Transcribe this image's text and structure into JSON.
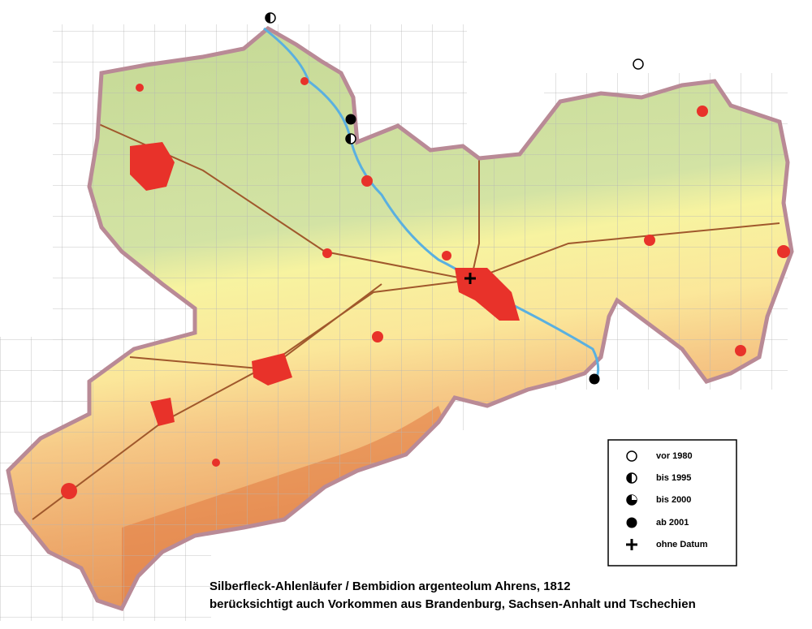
{
  "legend": {
    "items": [
      {
        "label": "vor 1980"
      },
      {
        "label": "bis 1995"
      },
      {
        "label": "bis 2000"
      },
      {
        "label": "ab  2001"
      },
      {
        "label": "ohne Datum"
      }
    ]
  },
  "caption": {
    "lines": [
      "Silberfleck-Ahlenläufer / Bembidion argenteolum Ahrens, 1812",
      "berücksichtigt auch Vorkommen aus Brandenburg, Sachsen-Anhalt und Tschechien"
    ]
  }
}
